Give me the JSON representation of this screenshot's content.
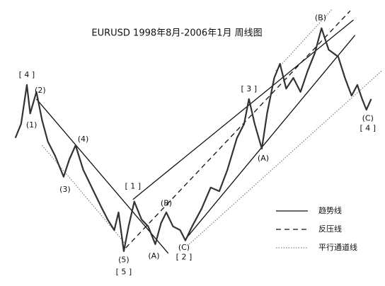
{
  "chart_data": {
    "type": "line",
    "title": "EURUSD  1998年8月-2006年1月  周线图",
    "xlim": [
      1998.5,
      2006.28
    ],
    "ylim": [
      0.788,
      1.404
    ],
    "legend_position": "lower right",
    "x": [
      1998.6,
      1998.72,
      1998.84,
      1998.91,
      1999.04,
      1999.16,
      1999.28,
      1999.43,
      1999.61,
      1999.73,
      1999.86,
      2000.02,
      2000.2,
      2000.38,
      2000.53,
      2000.67,
      2000.76,
      2000.87,
      2000.97,
      2001.09,
      2001.24,
      2001.38,
      2001.53,
      2001.65,
      2001.76,
      2001.9,
      2002.05,
      2002.16,
      2002.3,
      2002.5,
      2002.69,
      2002.87,
      2003.04,
      2003.24,
      2003.39,
      2003.49,
      2003.61,
      2003.76,
      2003.87,
      2004.02,
      2004.14,
      2004.27,
      2004.42,
      2004.57,
      2004.72,
      2004.87,
      2005.01,
      2005.16,
      2005.36,
      2005.5,
      2005.64,
      2005.76,
      2005.86,
      2005.95,
      2006.05
    ],
    "series": [
      {
        "name": "EURUSD",
        "color": "#333333",
        "values": [
          1.105,
          1.139,
          1.233,
          1.164,
          1.216,
          1.147,
          1.096,
          1.062,
          1.011,
          1.053,
          1.087,
          1.028,
          0.985,
          0.942,
          0.908,
          0.882,
          0.925,
          0.831,
          0.891,
          0.951,
          0.908,
          0.891,
          0.848,
          0.899,
          0.925,
          0.891,
          0.882,
          0.857,
          0.891,
          0.934,
          0.985,
          0.976,
          1.028,
          1.105,
          1.139,
          1.199,
          1.139,
          1.079,
          1.164,
          1.25,
          1.284,
          1.224,
          1.25,
          1.216,
          1.267,
          1.31,
          1.37,
          1.318,
          1.301,
          1.25,
          1.207,
          1.233,
          1.199,
          1.173,
          1.199
        ]
      }
    ],
    "lines": [
      {
        "style": "solid",
        "from": [
          1999.04,
          1.199
        ],
        "to": [
          2001.8,
          0.826
        ]
      },
      {
        "style": "solid",
        "from": [
          2001.06,
          0.956
        ],
        "to": [
          2005.68,
          1.39
        ]
      },
      {
        "style": "solid",
        "from": [
          2002.16,
          0.86
        ],
        "to": [
          2005.71,
          1.353
        ]
      },
      {
        "style": "dashed",
        "from": [
          2000.91,
          0.839
        ],
        "to": [
          2005.61,
          1.412
        ]
      },
      {
        "style": "dotted",
        "from": [
          1999.16,
          1.087
        ],
        "to": [
          2000.91,
          0.848
        ]
      },
      {
        "style": "dotted",
        "from": [
          2002.24,
          0.848
        ],
        "to": [
          2006.27,
          1.267
        ]
      },
      {
        "style": "dotted",
        "from": [
          2004.05,
          1.267
        ],
        "to": [
          2005.24,
          1.417
        ]
      }
    ],
    "legend": [
      {
        "name": "趋势线",
        "style": "solid"
      },
      {
        "name": "反压线",
        "style": "dashed"
      },
      {
        "name": "平行通道线",
        "style": "dotted"
      }
    ],
    "annotations": [
      {
        "text": "[ 4 ]",
        "x": 1998.84,
        "y": 1.257
      },
      {
        "text": "(2)",
        "x": 1999.12,
        "y": 1.219
      },
      {
        "text": "(1)",
        "x": 1998.94,
        "y": 1.135
      },
      {
        "text": "(4)",
        "x": 2000.02,
        "y": 1.101
      },
      {
        "text": "(3)",
        "x": 1999.64,
        "y": 0.98
      },
      {
        "text": "(5)",
        "x": 2000.87,
        "y": 0.809
      },
      {
        "text": "[ 5 ]",
        "x": 2000.87,
        "y": 0.78
      },
      {
        "text": "[ 1 ]",
        "x": 2001.06,
        "y": 0.987
      },
      {
        "text": "(B)",
        "x": 2001.76,
        "y": 0.946
      },
      {
        "text": "(A)",
        "x": 2001.5,
        "y": 0.819
      },
      {
        "text": "(C)",
        "x": 2002.13,
        "y": 0.839
      },
      {
        "text": "[ 2 ]",
        "x": 2002.13,
        "y": 0.816
      },
      {
        "text": "[ 3 ]",
        "x": 2003.49,
        "y": 1.223
      },
      {
        "text": "(A)",
        "x": 2003.79,
        "y": 1.055
      },
      {
        "text": "(B)",
        "x": 2004.99,
        "y": 1.395
      },
      {
        "text": "(C)",
        "x": 2005.98,
        "y": 1.152
      },
      {
        "text": "[ 4 ]",
        "x": 2005.98,
        "y": 1.128
      }
    ]
  }
}
